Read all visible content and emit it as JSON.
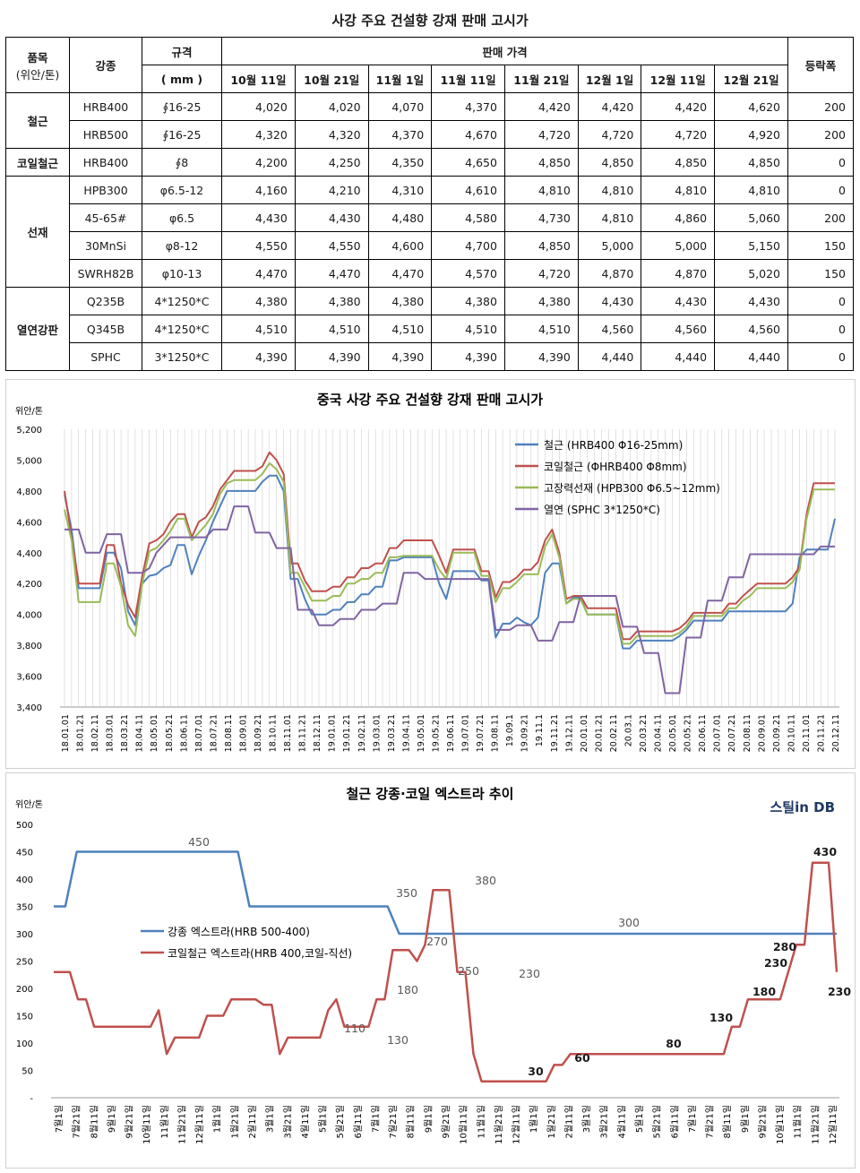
{
  "table": {
    "title": "사강 주요 건설향 강재 판매 고시가",
    "headers": {
      "category": "품목",
      "category_unit": "(위안/톤)",
      "grade": "강종",
      "spec": "규격",
      "spec_unit": "( mm )",
      "price_group": "판매 가격",
      "dates": [
        "10월 11일",
        "10월 21일",
        "11월 1일",
        "11월 11일",
        "11월 21일",
        "12월 1일",
        "12월 11일",
        "12월 21일"
      ],
      "change": "등락폭"
    },
    "groups": [
      {
        "name": "철근",
        "rows": [
          {
            "grade": "HRB400",
            "spec": "∮16-25",
            "prices": [
              "4,020",
              "4,020",
              "4,070",
              "4,370",
              "4,420",
              "4,420",
              "4,420",
              "4,620"
            ],
            "change": "200"
          },
          {
            "grade": "HRB500",
            "spec": "∮16-25",
            "prices": [
              "4,320",
              "4,320",
              "4,370",
              "4,670",
              "4,720",
              "4,720",
              "4,720",
              "4,920"
            ],
            "change": "200"
          }
        ]
      },
      {
        "name": "코일철근",
        "rows": [
          {
            "grade": "HRB400",
            "spec": "∮8",
            "prices": [
              "4,200",
              "4,250",
              "4,350",
              "4,650",
              "4,850",
              "4,850",
              "4,850",
              "4,850"
            ],
            "change": "0"
          }
        ]
      },
      {
        "name": "선재",
        "rows": [
          {
            "grade": "HPB300",
            "spec": "φ6.5-12",
            "prices": [
              "4,160",
              "4,210",
              "4,310",
              "4,610",
              "4,810",
              "4,810",
              "4,810",
              "4,810"
            ],
            "change": "0"
          },
          {
            "grade": "45-65#",
            "spec": "φ6.5",
            "prices": [
              "4,430",
              "4,430",
              "4,480",
              "4,580",
              "4,730",
              "4,810",
              "4,860",
              "5,060"
            ],
            "change": "200"
          },
          {
            "grade": "30MnSi",
            "spec": "φ8-12",
            "prices": [
              "4,550",
              "4,550",
              "4,600",
              "4,700",
              "4,850",
              "5,000",
              "5,000",
              "5,150"
            ],
            "change": "150"
          },
          {
            "grade": "SWRH82B",
            "spec": "φ10-13",
            "prices": [
              "4,470",
              "4,470",
              "4,470",
              "4,570",
              "4,720",
              "4,870",
              "4,870",
              "5,020"
            ],
            "change": "150"
          }
        ]
      },
      {
        "name": "열연강판",
        "rows": [
          {
            "grade": "Q235B",
            "spec": "4*1250*C",
            "prices": [
              "4,380",
              "4,380",
              "4,380",
              "4,380",
              "4,380",
              "4,430",
              "4,430",
              "4,430"
            ],
            "change": "0"
          },
          {
            "grade": "Q345B",
            "spec": "4*1250*C",
            "prices": [
              "4,510",
              "4,510",
              "4,510",
              "4,510",
              "4,510",
              "4,560",
              "4,560",
              "4,560"
            ],
            "change": "0"
          },
          {
            "grade": "SPHC",
            "spec": "3*1250*C",
            "prices": [
              "4,390",
              "4,390",
              "4,390",
              "4,390",
              "4,390",
              "4,440",
              "4,440",
              "4,440"
            ],
            "change": "0"
          }
        ]
      }
    ]
  },
  "chart_data": [
    {
      "type": "line",
      "title": "중국 사강 주요 건설향 강재 판매 고시가",
      "unit_label": "위안/톤",
      "ylim": [
        3400,
        5200
      ],
      "yticks": [
        "3,400",
        "3,600",
        "3,800",
        "4,000",
        "4,200",
        "4,400",
        "4,600",
        "4,800",
        "5,000",
        "5,200"
      ],
      "grid": "vertical",
      "legend_position": "top-right",
      "x_labels": [
        "18.01.01",
        "18.01.21",
        "18.02.11",
        "18.03.01",
        "18.03.21",
        "18.04.11",
        "18.05.01",
        "18.05.21",
        "18.06.11",
        "18.07.01",
        "18.07.21",
        "18.08.11",
        "18.09.01",
        "18.09.21",
        "18.10.11",
        "18.11.01",
        "18.11.21",
        "18.12.11",
        "19.01.01",
        "19.01.21",
        "19.02.11",
        "19.03.01",
        "19.03.21",
        "19.04.11",
        "19.05.01",
        "19.05.21",
        "19.06.11",
        "19.07.01",
        "19.07.21",
        "19.08.11",
        "19.09.1",
        "19.09.21",
        "19.11.1",
        "19.11.21",
        "19.12.11",
        "20.01.01",
        "20.01.21",
        "20.02.11",
        "20.03.1",
        "20.03.21",
        "20.04.11",
        "20.05.01",
        "20.05.21",
        "20.06.11",
        "20.07.01",
        "20.07.21",
        "20.08.11",
        "20.09.01",
        "20.09.21",
        "20.10.11",
        "20.11.01",
        "20.11.21",
        "20.12.11"
      ],
      "series": [
        {
          "name": "철근 (HRB400 Φ16-25mm)",
          "color": "#4f81bd",
          "values": [
            4780,
            4550,
            4170,
            4170,
            4170,
            4170,
            4400,
            4400,
            4300,
            4020,
            3930,
            4200,
            4250,
            4260,
            4300,
            4320,
            4450,
            4450,
            4260,
            4380,
            4480,
            4600,
            4700,
            4800,
            4800,
            4800,
            4800,
            4800,
            4860,
            4900,
            4900,
            4800,
            4230,
            4230,
            4100,
            4000,
            4000,
            4000,
            4030,
            4030,
            4080,
            4080,
            4130,
            4130,
            4180,
            4180,
            4350,
            4350,
            4370,
            4370,
            4370,
            4370,
            4370,
            4200,
            4100,
            4280,
            4280,
            4280,
            4280,
            4220,
            4220,
            3850,
            3940,
            3940,
            3980,
            3950,
            3930,
            3980,
            4270,
            4330,
            4330,
            4070,
            4110,
            4110,
            4000,
            4000,
            4000,
            4000,
            4000,
            3780,
            3780,
            3830,
            3830,
            3830,
            3830,
            3830,
            3830,
            3860,
            3900,
            3960,
            3960,
            3960,
            3960,
            3960,
            4020,
            4020,
            4020,
            4020,
            4020,
            4020,
            4020,
            4020,
            4020,
            4070,
            4370,
            4420,
            4420,
            4420,
            4420,
            4620
          ]
        },
        {
          "name": "코일철근 (ΦHRB400 Φ8mm)",
          "color": "#c0504d",
          "values": [
            4800,
            4500,
            4200,
            4200,
            4200,
            4200,
            4450,
            4450,
            4200,
            4060,
            3980,
            4250,
            4460,
            4480,
            4520,
            4600,
            4650,
            4650,
            4500,
            4600,
            4630,
            4700,
            4810,
            4870,
            4930,
            4930,
            4930,
            4930,
            4960,
            5050,
            5000,
            4910,
            4330,
            4330,
            4220,
            4150,
            4150,
            4150,
            4180,
            4180,
            4240,
            4240,
            4300,
            4300,
            4330,
            4330,
            4430,
            4430,
            4480,
            4480,
            4480,
            4480,
            4480,
            4380,
            4270,
            4420,
            4420,
            4420,
            4420,
            4280,
            4280,
            4110,
            4210,
            4210,
            4240,
            4290,
            4290,
            4340,
            4480,
            4550,
            4400,
            4100,
            4120,
            4120,
            4040,
            4040,
            4040,
            4040,
            4040,
            3840,
            3840,
            3890,
            3890,
            3890,
            3890,
            3890,
            3890,
            3910,
            3950,
            4010,
            4010,
            4010,
            4010,
            4010,
            4070,
            4070,
            4120,
            4160,
            4200,
            4200,
            4200,
            4200,
            4200,
            4240,
            4310,
            4650,
            4850,
            4850,
            4850,
            4850
          ]
        },
        {
          "name": "고장력선재 (HPB300 Φ6.5~12mm)",
          "color": "#9bbb59",
          "values": [
            4680,
            4480,
            4080,
            4080,
            4080,
            4080,
            4330,
            4330,
            4180,
            3930,
            3860,
            4200,
            4410,
            4430,
            4480,
            4540,
            4620,
            4620,
            4480,
            4530,
            4580,
            4650,
            4780,
            4850,
            4870,
            4870,
            4870,
            4870,
            4910,
            4980,
            4940,
            4860,
            4270,
            4270,
            4180,
            4090,
            4090,
            4090,
            4120,
            4120,
            4200,
            4200,
            4230,
            4230,
            4270,
            4270,
            4370,
            4370,
            4380,
            4380,
            4380,
            4380,
            4380,
            4290,
            4230,
            4400,
            4400,
            4400,
            4400,
            4250,
            4250,
            4080,
            4170,
            4170,
            4210,
            4260,
            4260,
            4260,
            4440,
            4520,
            4370,
            4070,
            4100,
            4100,
            4000,
            4000,
            4000,
            4000,
            4000,
            3810,
            3810,
            3860,
            3860,
            3860,
            3860,
            3860,
            3860,
            3880,
            3920,
            3990,
            3990,
            3990,
            3990,
            3990,
            4040,
            4040,
            4090,
            4120,
            4170,
            4170,
            4170,
            4170,
            4170,
            4210,
            4290,
            4620,
            4810,
            4810,
            4810,
            4810
          ]
        },
        {
          "name": "열연 (SPHC 3*1250*C)",
          "color": "#8064a2",
          "values": [
            4550,
            4550,
            4550,
            4400,
            4400,
            4400,
            4520,
            4520,
            4520,
            4270,
            4270,
            4270,
            4300,
            4400,
            4450,
            4500,
            4500,
            4500,
            4500,
            4500,
            4500,
            4550,
            4550,
            4550,
            4700,
            4700,
            4700,
            4530,
            4530,
            4530,
            4430,
            4430,
            4430,
            4030,
            4030,
            4030,
            3930,
            3930,
            3930,
            3970,
            3970,
            3970,
            4030,
            4030,
            4030,
            4070,
            4070,
            4070,
            4270,
            4270,
            4270,
            4230,
            4230,
            4230,
            4230,
            4230,
            4230,
            4230,
            4230,
            4230,
            4230,
            3900,
            3900,
            3900,
            3930,
            3930,
            3930,
            3830,
            3830,
            3830,
            3950,
            3950,
            3950,
            4120,
            4120,
            4120,
            4120,
            4120,
            4120,
            3920,
            3920,
            3920,
            3750,
            3750,
            3750,
            3490,
            3490,
            3490,
            3850,
            3850,
            3850,
            4090,
            4090,
            4090,
            4240,
            4240,
            4240,
            4390,
            4390,
            4390,
            4390,
            4390,
            4390,
            4390,
            4390,
            4390,
            4390,
            4440,
            4440,
            4440
          ]
        }
      ]
    },
    {
      "type": "line",
      "title": "철근 강종·코일 엑스트라 추이",
      "brand": "스틸in DB",
      "unit_label": "위안/톤",
      "ylim": [
        0,
        500
      ],
      "yticks": [
        "-",
        "50",
        "100",
        "150",
        "200",
        "250",
        "300",
        "350",
        "400",
        "450",
        "500"
      ],
      "grid": "none",
      "legend_position": "center-left",
      "x_labels": [
        "7월1일",
        "7월21일",
        "8월11일",
        "9월1일",
        "9월21일",
        "10월11일",
        "11월1일",
        "11월21일",
        "12월11일",
        "1월1일",
        "1월21일",
        "2월11일",
        "3월1일",
        "3월21일",
        "4월11일",
        "5월1일",
        "5월21일",
        "6월11일",
        "7월1일",
        "7월21일",
        "8월11일",
        "9월1일",
        "9월21일",
        "10월11일",
        "11월1일",
        "11월21일",
        "12월11일",
        "1월1일",
        "1월21일",
        "2월11일",
        "3월1일",
        "3월21일",
        "4월11일",
        "5월1일",
        "5월21일",
        "6월11일",
        "7월1일",
        "7월21일",
        "8월11일",
        "9월1일",
        "9월21일",
        "10월11일",
        "11월1일",
        "11월21일",
        "12월11일"
      ],
      "series": [
        {
          "name": "강종 엑스트라(HRB 500-400)",
          "color": "#4f81bd",
          "values": [
            350,
            350,
            450,
            450,
            450,
            450,
            450,
            450,
            450,
            450,
            450,
            450,
            450,
            450,
            450,
            450,
            450,
            350,
            350,
            350,
            350,
            350,
            350,
            350,
            350,
            350,
            350,
            350,
            350,
            350,
            300,
            300,
            300,
            300,
            300,
            300,
            300,
            300,
            300,
            300,
            300,
            300,
            300,
            300,
            300,
            300,
            300,
            300,
            300,
            300,
            300,
            300,
            300,
            300,
            300,
            300,
            300,
            300,
            300,
            300,
            300,
            300,
            300,
            300,
            300,
            300,
            300,
            300,
            300
          ]
        },
        {
          "name": "코일철근 엑스트라(HRB 400,코일-직선)",
          "color": "#c0504d",
          "values": [
            230,
            230,
            230,
            180,
            180,
            130,
            130,
            130,
            130,
            130,
            130,
            130,
            130,
            160,
            80,
            110,
            110,
            110,
            110,
            150,
            150,
            150,
            180,
            180,
            180,
            180,
            170,
            170,
            80,
            110,
            110,
            110,
            110,
            110,
            160,
            180,
            130,
            130,
            130,
            130,
            180,
            180,
            270,
            270,
            270,
            250,
            280,
            380,
            380,
            380,
            230,
            230,
            80,
            30,
            30,
            30,
            30,
            30,
            30,
            30,
            30,
            30,
            60,
            60,
            80,
            80,
            80,
            80,
            80,
            80,
            80,
            80,
            80,
            80,
            80,
            80,
            80,
            80,
            80,
            80,
            80,
            80,
            80,
            80,
            130,
            130,
            180,
            180,
            180,
            180,
            180,
            230,
            280,
            280,
            430,
            430,
            430,
            230
          ]
        }
      ],
      "data_labels": [
        {
          "series": 0,
          "text": "450"
        },
        {
          "series": 0,
          "text": "350"
        },
        {
          "series": 0,
          "text": "300"
        },
        {
          "series": 1,
          "text": "110"
        },
        {
          "series": 1,
          "text": "130"
        },
        {
          "series": 1,
          "text": "180"
        },
        {
          "series": 1,
          "text": "270"
        },
        {
          "series": 1,
          "text": "250"
        },
        {
          "series": 1,
          "text": "380"
        },
        {
          "series": 1,
          "text": "230"
        },
        {
          "series": 1,
          "text": "30"
        },
        {
          "series": 1,
          "text": "60"
        },
        {
          "series": 1,
          "text": "80"
        },
        {
          "series": 1,
          "text": "130"
        },
        {
          "series": 1,
          "text": "180"
        },
        {
          "series": 1,
          "text": "230"
        },
        {
          "series": 1,
          "text": "280"
        },
        {
          "series": 1,
          "text": "430"
        },
        {
          "series": 1,
          "text": "230"
        }
      ]
    }
  ]
}
